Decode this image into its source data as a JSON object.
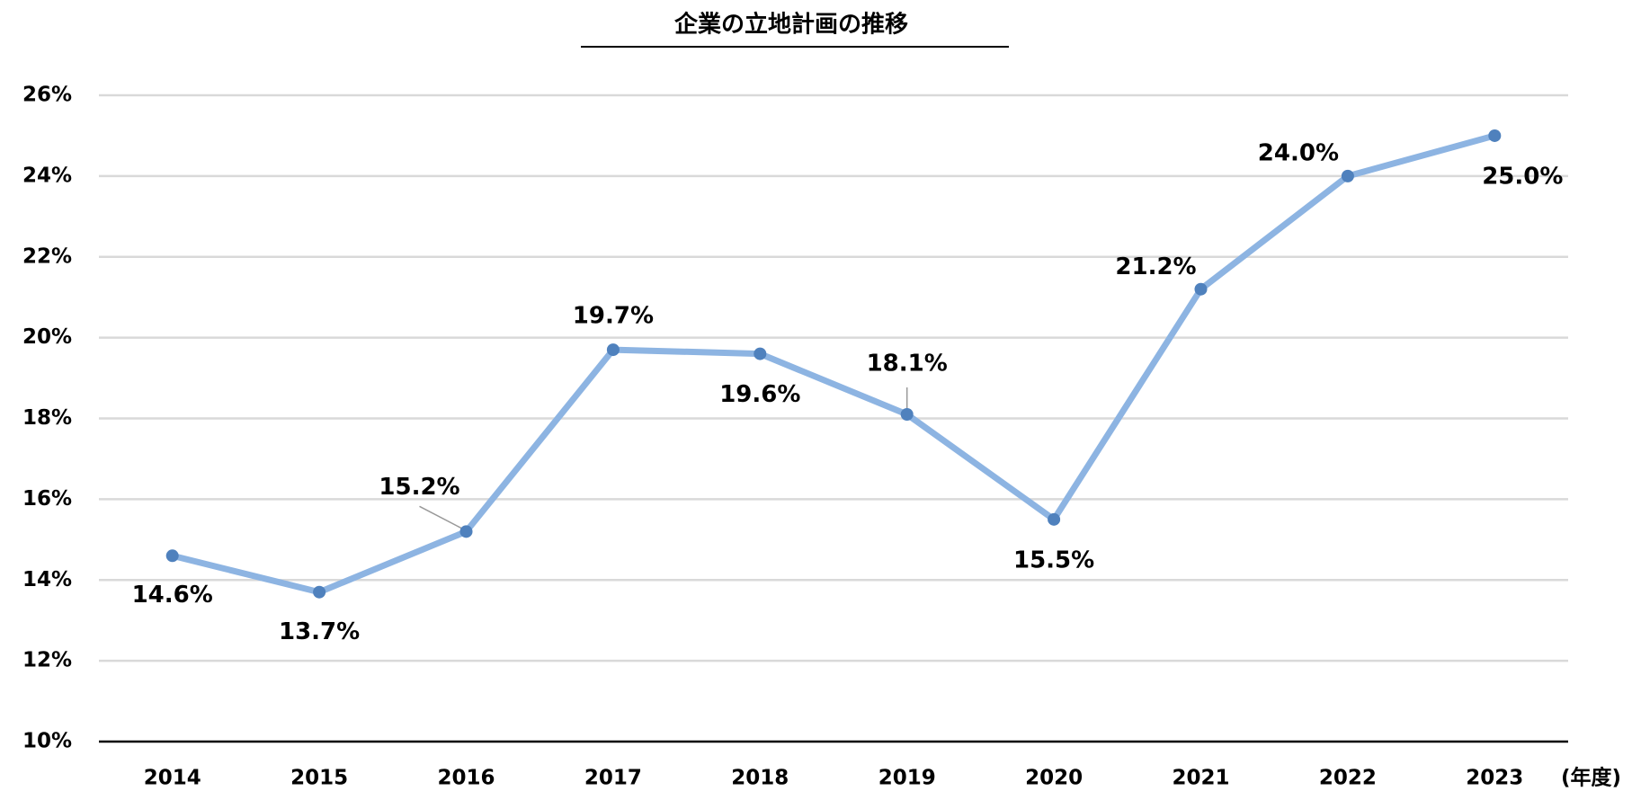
{
  "chart_data": {
    "type": "line",
    "title": "企業の立地計画の推移",
    "x_label": "(年度)",
    "categories": [
      "2014",
      "2015",
      "2016",
      "2017",
      "2018",
      "2019",
      "2020",
      "2021",
      "2022",
      "2023"
    ],
    "series": [
      {
        "name": "企業の立地計画",
        "color": "#8db4e2",
        "marker_color": "#4f81bd",
        "values": [
          14.6,
          13.7,
          15.2,
          19.7,
          19.6,
          18.1,
          15.5,
          21.2,
          24.0,
          25.0
        ],
        "value_labels": [
          "14.6%",
          "13.7%",
          "15.2%",
          "19.7%",
          "19.6%",
          "18.1%",
          "15.5%",
          "21.2%",
          "24.0%",
          "25.0%"
        ]
      }
    ],
    "ylim": [
      10,
      26
    ],
    "yticks": [
      {
        "value": 10,
        "label": "10%"
      },
      {
        "value": 12,
        "label": "12%"
      },
      {
        "value": 14,
        "label": "14%"
      },
      {
        "value": 16,
        "label": "16%"
      },
      {
        "value": 18,
        "label": "18%"
      },
      {
        "value": 20,
        "label": "20%"
      },
      {
        "value": 22,
        "label": "22%"
      },
      {
        "value": 24,
        "label": "24%"
      },
      {
        "value": 26,
        "label": "26%"
      }
    ],
    "grid": true
  }
}
